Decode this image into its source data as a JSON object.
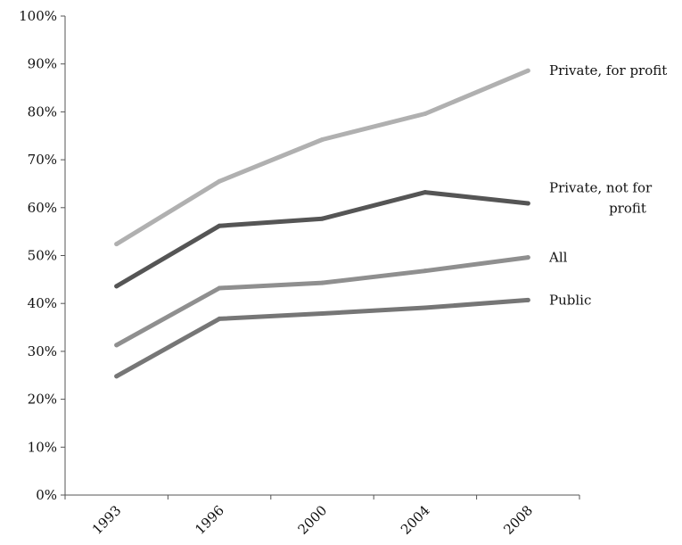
{
  "chart_data": {
    "type": "line",
    "title": "",
    "xlabel": "",
    "ylabel": "",
    "categories": [
      "1993",
      "1996",
      "2000",
      "2004",
      "2008"
    ],
    "ylim": [
      0,
      100
    ],
    "yticks": [
      "0%",
      "10%",
      "20%",
      "30%",
      "40%",
      "50%",
      "60%",
      "70%",
      "80%",
      "90%",
      "100%"
    ],
    "grid": false,
    "legend": "direct labels at line ends",
    "series": [
      {
        "name": "Private, for profit",
        "label_lines": [
          "Private, for profit"
        ],
        "color": "#b0b0b0",
        "values": [
          52.4,
          65.5,
          74.2,
          79.6,
          88.6
        ]
      },
      {
        "name": "Private, not for profit",
        "label_lines": [
          "Private, not for",
          "profit"
        ],
        "color": "#555555",
        "values": [
          43.6,
          56.2,
          57.7,
          63.2,
          60.9
        ]
      },
      {
        "name": "All",
        "label_lines": [
          "All"
        ],
        "color": "#8f8f8f",
        "values": [
          31.3,
          43.2,
          44.3,
          46.8,
          49.6
        ]
      },
      {
        "name": "Public",
        "label_lines": [
          "Public"
        ],
        "color": "#767676",
        "values": [
          24.8,
          36.8,
          37.9,
          39.1,
          40.7
        ]
      }
    ]
  }
}
